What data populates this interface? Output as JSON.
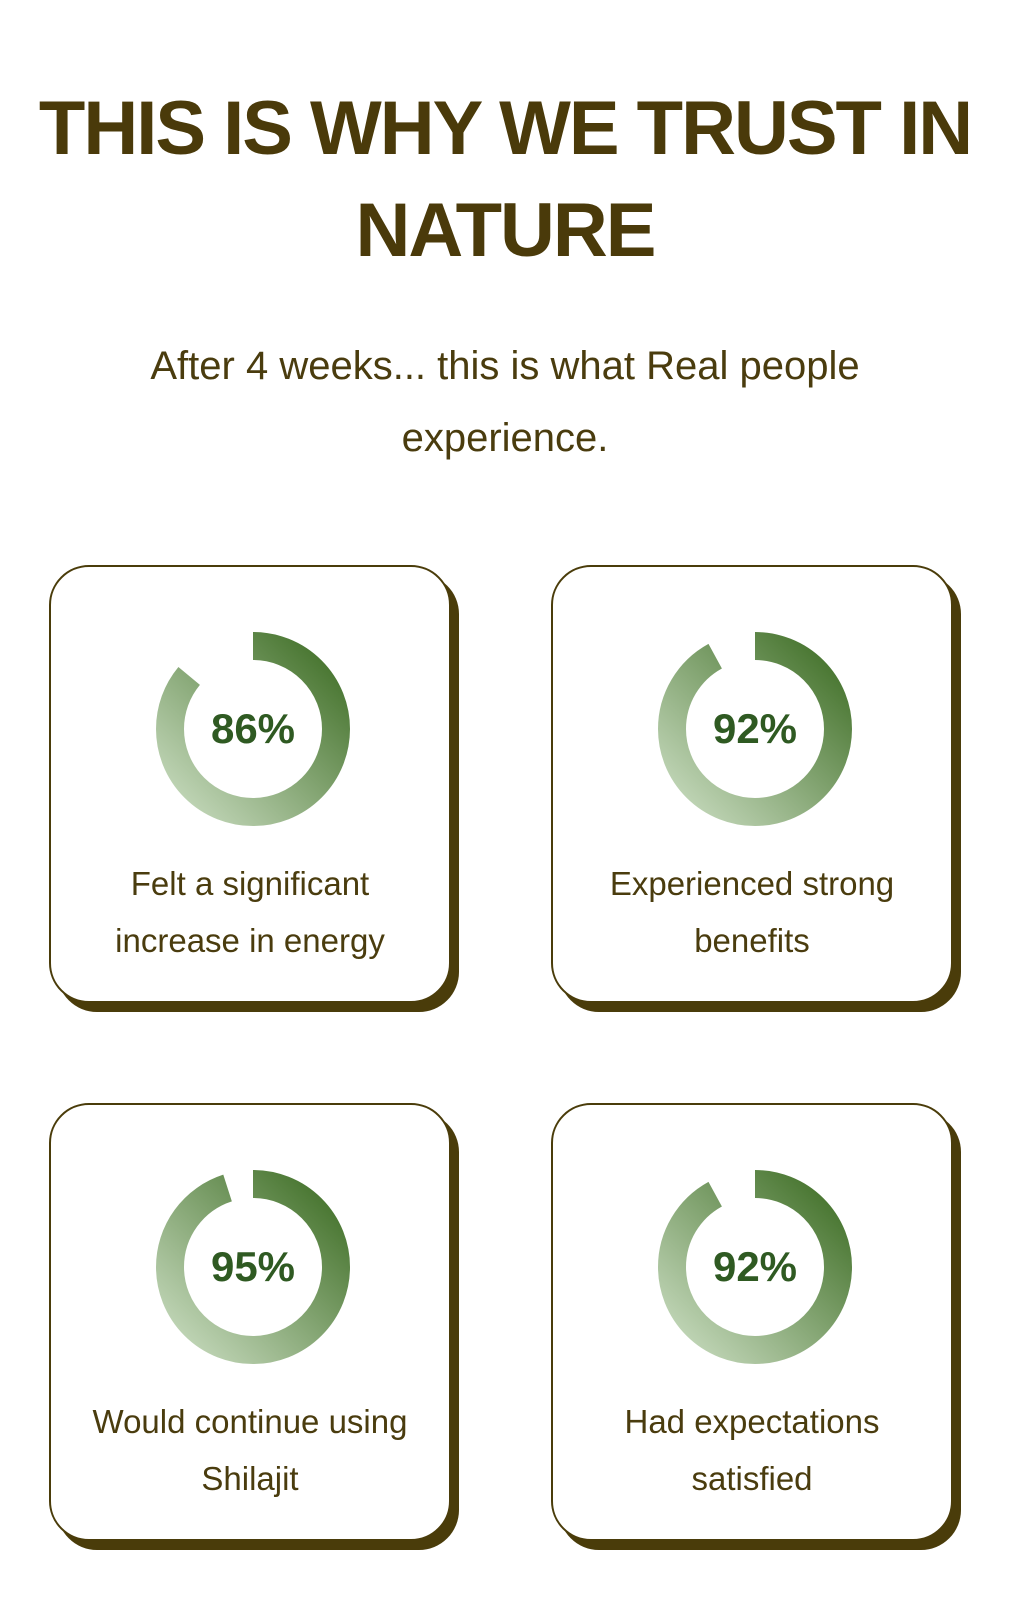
{
  "heading": "THIS IS WHY WE TRUST IN NATURE",
  "subheading": "After 4 weeks... this is what Real people experience.",
  "colors": {
    "brand_brown": "#4a3c0a",
    "ring_light": "#c9dcc0",
    "ring_dark": "#3f6e26"
  },
  "stats": [
    {
      "value": 86,
      "display": "86%",
      "label": "Felt a significant increase in energy"
    },
    {
      "value": 92,
      "display": "92%",
      "label": "Experienced strong benefits"
    },
    {
      "value": 95,
      "display": "95%",
      "label": "Would continue using Shilajit"
    },
    {
      "value": 92,
      "display": "92%",
      "label": "Had expectations satisfied"
    }
  ]
}
